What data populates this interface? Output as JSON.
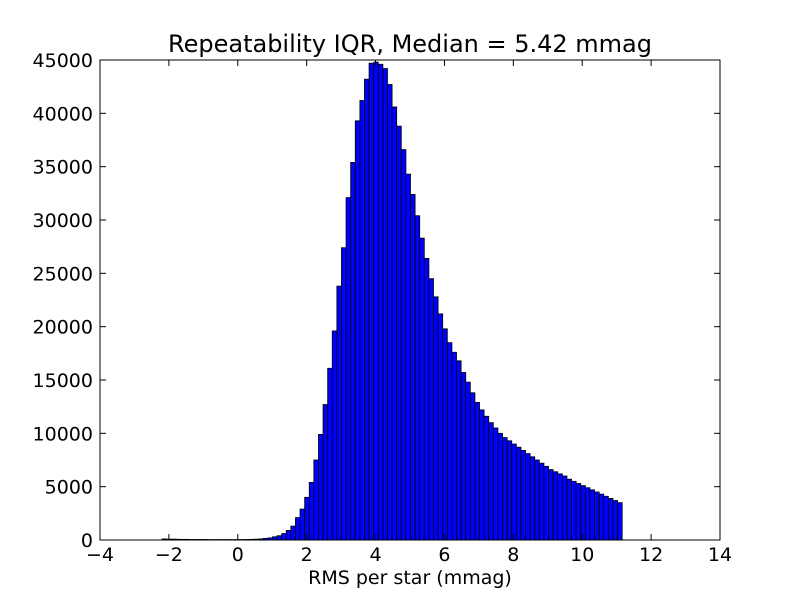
{
  "chart_data": {
    "type": "bar",
    "title": "Repeatability IQR, Median = 5.42 mmag",
    "xlabel": "RMS per star (mmag)",
    "ylabel": "",
    "xlim": [
      -4,
      14
    ],
    "ylim": [
      0,
      45000
    ],
    "xticks": [
      -4,
      -2,
      0,
      2,
      4,
      6,
      8,
      10,
      12,
      14
    ],
    "xtick_labels": [
      "−4",
      "−2",
      "0",
      "2",
      "4",
      "6",
      "8",
      "10",
      "12",
      "14"
    ],
    "yticks": [
      0,
      5000,
      10000,
      15000,
      20000,
      25000,
      30000,
      35000,
      40000,
      45000
    ],
    "ytick_labels": [
      "0",
      "5000",
      "10000",
      "15000",
      "20000",
      "25000",
      "30000",
      "35000",
      "40000",
      "45000"
    ],
    "grid": false,
    "legend": "none",
    "bar_color": "#0000ff",
    "bar_edge_color": "#000000",
    "bins": {
      "x_start": -2.2,
      "bin_width": 0.1336,
      "values": [
        100,
        80,
        80,
        70,
        60,
        60,
        50,
        50,
        50,
        50,
        40,
        40,
        40,
        40,
        40,
        40,
        40,
        40,
        50,
        60,
        80,
        100,
        150,
        200,
        300,
        400,
        600,
        900,
        1300,
        2100,
        2900,
        4000,
        5400,
        7500,
        9900,
        12700,
        16100,
        19600,
        23800,
        27400,
        32100,
        35400,
        39300,
        41200,
        43200,
        44700,
        44800,
        44600,
        44200,
        42700,
        40600,
        38800,
        36600,
        34300,
        32400,
        30400,
        28300,
        26400,
        24500,
        22800,
        21200,
        19800,
        18500,
        17600,
        16800,
        15700,
        14800,
        13800,
        12900,
        12200,
        11600,
        11000,
        10500,
        10000,
        9600,
        9300,
        9000,
        8700,
        8400,
        8100,
        7800,
        7500,
        7200,
        6900,
        6600,
        6400,
        6200,
        6000,
        5700,
        5500,
        5300,
        5100,
        4900,
        4700,
        4500,
        4300,
        4100,
        3900,
        3700,
        3500
      ]
    }
  }
}
